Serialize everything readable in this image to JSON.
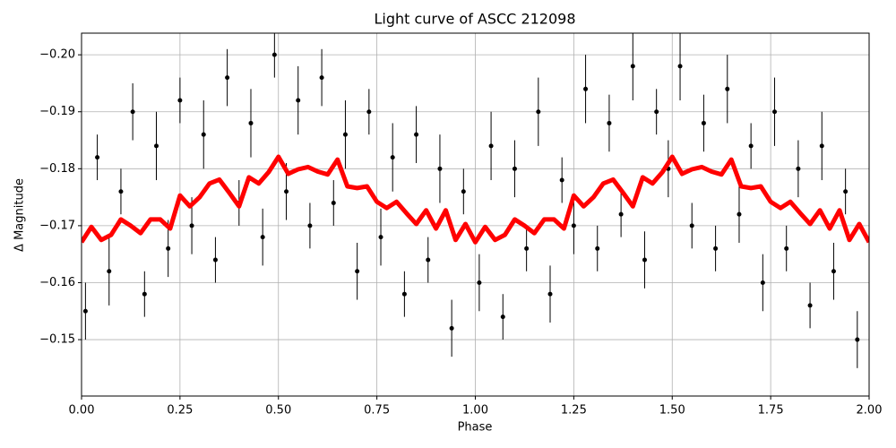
{
  "chart_data": {
    "type": "scatter",
    "title": "Light curve of ASCC 212098",
    "xlabel": "Phase",
    "ylabel": "Δ Magnitude",
    "xlim": [
      0,
      2
    ],
    "ylim": [
      -0.1401,
      -0.2038
    ],
    "xticks": [
      {
        "value": 0,
        "label": "0.00"
      },
      {
        "value": 0.25,
        "label": "0.25"
      },
      {
        "value": 0.5,
        "label": "0.50"
      },
      {
        "value": 0.75,
        "label": "0.75"
      },
      {
        "value": 1,
        "label": "1.00"
      },
      {
        "value": 1.25,
        "label": "1.25"
      },
      {
        "value": 1.5,
        "label": "1.50"
      },
      {
        "value": 1.75,
        "label": "1.75"
      },
      {
        "value": 2,
        "label": "2.00"
      }
    ],
    "yticks": [
      {
        "value": -0.15,
        "label": "−0.15"
      },
      {
        "value": -0.16,
        "label": "−0.16"
      },
      {
        "value": -0.17,
        "label": "−0.17"
      },
      {
        "value": -0.18,
        "label": "−0.18"
      },
      {
        "value": -0.19,
        "label": "−0.19"
      },
      {
        "value": -0.2,
        "label": "−0.20"
      }
    ],
    "grid": true,
    "points": {
      "color": "#000000",
      "x": [
        0.01,
        0.04,
        0.07,
        0.1,
        0.13,
        0.16,
        0.19,
        0.22,
        0.25,
        0.28,
        0.31,
        0.34,
        0.37,
        0.4,
        0.43,
        0.46,
        0.49,
        0.52,
        0.55,
        0.58,
        0.61,
        0.64,
        0.67,
        0.7,
        0.73,
        0.76,
        0.79,
        0.82,
        0.85,
        0.88,
        0.91,
        0.94,
        0.97,
        1.01,
        1.04,
        1.07,
        1.1,
        1.13,
        1.16,
        1.19,
        1.22,
        1.25,
        1.28,
        1.31,
        1.34,
        1.37,
        1.4,
        1.43,
        1.46,
        1.49,
        1.52,
        1.55,
        1.58,
        1.61,
        1.64,
        1.67,
        1.7,
        1.73,
        1.76,
        1.79,
        1.82,
        1.85,
        1.88,
        1.91,
        1.94,
        1.97
      ],
      "values": [
        -0.155,
        -0.182,
        -0.162,
        -0.176,
        -0.19,
        -0.158,
        -0.184,
        -0.166,
        -0.192,
        -0.17,
        -0.186,
        -0.164,
        -0.196,
        -0.174,
        -0.188,
        -0.168,
        -0.2,
        -0.176,
        -0.192,
        -0.17,
        -0.196,
        -0.174,
        -0.186,
        -0.162,
        -0.19,
        -0.168,
        -0.182,
        -0.158,
        -0.186,
        -0.164,
        -0.18,
        -0.152,
        -0.176,
        -0.16,
        -0.184,
        -0.154,
        -0.18,
        -0.166,
        -0.19,
        -0.158,
        -0.178,
        -0.17,
        -0.194,
        -0.166,
        -0.188,
        -0.172,
        -0.198,
        -0.164,
        -0.19,
        -0.18,
        -0.198,
        -0.17,
        -0.188,
        -0.166,
        -0.194,
        -0.172,
        -0.184,
        -0.16,
        -0.19,
        -0.166,
        -0.18,
        -0.156,
        -0.184,
        -0.162,
        -0.176,
        -0.15
      ],
      "error": [
        0.005,
        0.004,
        0.006,
        0.004,
        0.005,
        0.004,
        0.006,
        0.005,
        0.004,
        0.005,
        0.006,
        0.004,
        0.005,
        0.004,
        0.006,
        0.005,
        0.004,
        0.005,
        0.006,
        0.004,
        0.005,
        0.004,
        0.006,
        0.005,
        0.004,
        0.005,
        0.006,
        0.004,
        0.005,
        0.004,
        0.006,
        0.005,
        0.004,
        0.005,
        0.006,
        0.004,
        0.005,
        0.004,
        0.006,
        0.005,
        0.004,
        0.005,
        0.006,
        0.004,
        0.005,
        0.004,
        0.006,
        0.005,
        0.004,
        0.005,
        0.006,
        0.004,
        0.005,
        0.004,
        0.006,
        0.005,
        0.004,
        0.005,
        0.006,
        0.004,
        0.005,
        0.004,
        0.006,
        0.005,
        0.004,
        0.005
      ]
    },
    "model": {
      "color": "#ff0000",
      "x": [
        0,
        0.025,
        0.05,
        0.075,
        0.1,
        0.125,
        0.15,
        0.175,
        0.2,
        0.225,
        0.25,
        0.275,
        0.3,
        0.325,
        0.35,
        0.375,
        0.4,
        0.425,
        0.45,
        0.475,
        0.5,
        0.525,
        0.55,
        0.575,
        0.6,
        0.625,
        0.65,
        0.675,
        0.7,
        0.725,
        0.75,
        0.775,
        0.8,
        0.825,
        0.85,
        0.875,
        0.9,
        0.925,
        0.95,
        0.975,
        1,
        1.025,
        1.05,
        1.075,
        1.1,
        1.125,
        1.15,
        1.175,
        1.2,
        1.225,
        1.25,
        1.275,
        1.3,
        1.325,
        1.35,
        1.375,
        1.4,
        1.425,
        1.45,
        1.475,
        1.5,
        1.525,
        1.55,
        1.575,
        1.6,
        1.625,
        1.65,
        1.675,
        1.7,
        1.725,
        1.75,
        1.775,
        1.8,
        1.825,
        1.85,
        1.875,
        1.9,
        1.925,
        1.95,
        1.975,
        2
      ],
      "values": [
        -0.1671,
        -0.1698,
        -0.1675,
        -0.1684,
        -0.1711,
        -0.17,
        -0.1687,
        -0.1711,
        -0.1711,
        -0.1695,
        -0.1753,
        -0.1734,
        -0.175,
        -0.1774,
        -0.1781,
        -0.1758,
        -0.1734,
        -0.1785,
        -0.1774,
        -0.1794,
        -0.1821,
        -0.1791,
        -0.1799,
        -0.1803,
        -0.1795,
        -0.179,
        -0.1816,
        -0.1769,
        -0.1766,
        -0.1769,
        -0.1742,
        -0.1731,
        -0.1742,
        -0.1722,
        -0.1703,
        -0.1727,
        -0.1695,
        -0.1727,
        -0.1675,
        -0.1703,
        -0.1671,
        -0.1698,
        -0.1675,
        -0.1684,
        -0.1711,
        -0.17,
        -0.1687,
        -0.1711,
        -0.1711,
        -0.1695,
        -0.1753,
        -0.1734,
        -0.175,
        -0.1774,
        -0.1781,
        -0.1758,
        -0.1734,
        -0.1785,
        -0.1774,
        -0.1794,
        -0.1821,
        -0.1791,
        -0.1799,
        -0.1803,
        -0.1795,
        -0.179,
        -0.1816,
        -0.1769,
        -0.1766,
        -0.1769,
        -0.1742,
        -0.1731,
        -0.1742,
        -0.1722,
        -0.1703,
        -0.1727,
        -0.1695,
        -0.1727,
        -0.1675,
        -0.1703,
        -0.1671
      ]
    }
  }
}
